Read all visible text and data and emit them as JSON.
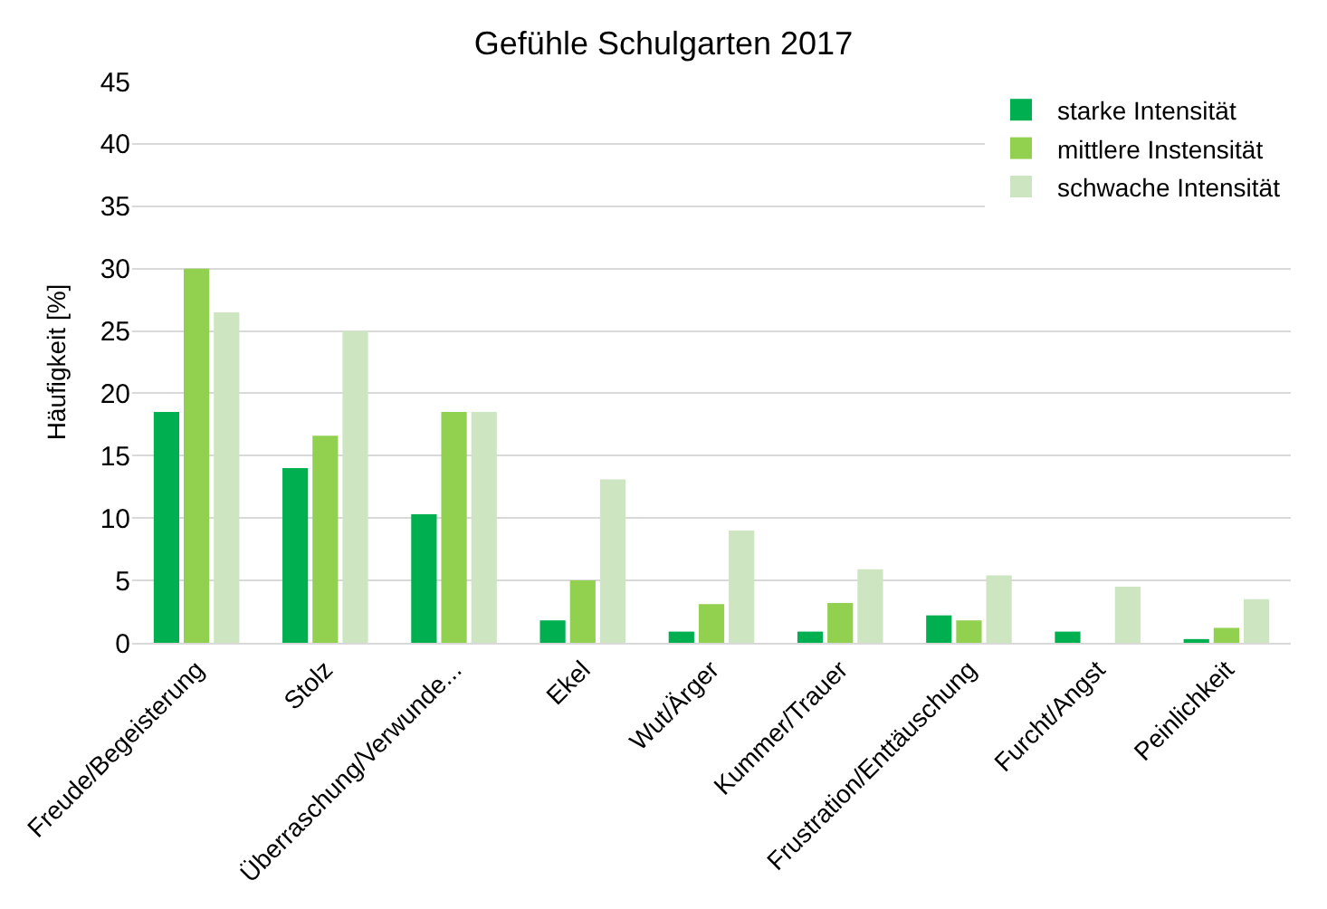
{
  "chart_data": {
    "type": "bar",
    "title": "Gefühle Schulgarten 2017",
    "ylabel": "Häufigkeit [%]",
    "categories": [
      "Freude/Begeisterung",
      "Stolz",
      "Überraschung/Verwunde...",
      "Ekel",
      "Wut/Ärger",
      "Kummer/Trauer",
      "Frustration/Enttäuschung",
      "Furcht/Angst",
      "Peinlichkeit"
    ],
    "series": [
      {
        "name": "starke Intensität",
        "color": "#00b050",
        "values": [
          18.5,
          14,
          10.3,
          1.8,
          0.9,
          0.9,
          2.2,
          0.9,
          0.3
        ]
      },
      {
        "name": "mittlere Instensität",
        "color": "#92d050",
        "values": [
          30,
          16.6,
          18.5,
          5,
          3.1,
          3.2,
          1.8,
          0,
          1.2
        ]
      },
      {
        "name": "schwache Intensität",
        "color": "#cde5c0",
        "values": [
          26.5,
          25,
          18.5,
          13.1,
          9,
          5.9,
          5.4,
          4.5,
          3.5
        ]
      }
    ],
    "ylim": [
      0,
      45
    ],
    "yticks": [
      0,
      5,
      10,
      15,
      20,
      25,
      30,
      35,
      40,
      45
    ],
    "grid": "y",
    "legend": "top right"
  }
}
